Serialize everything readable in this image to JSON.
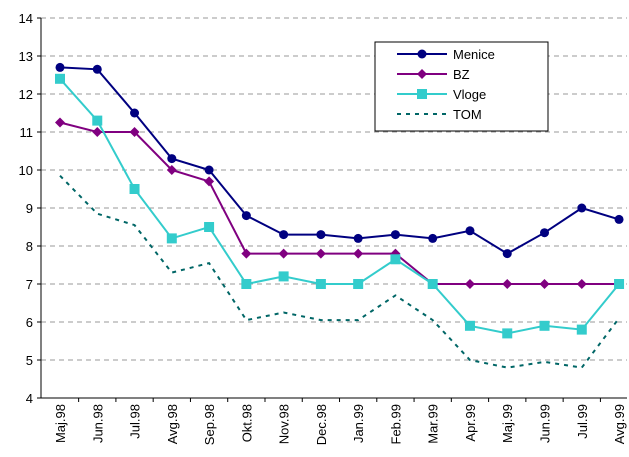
{
  "chart_data": {
    "type": "line",
    "categories": [
      "Maj.98",
      "Jun.98",
      "Jul.98",
      "Avg.98",
      "Sep.98",
      "Okt.98",
      "Nov.98",
      "Dec.98",
      "Jan.99",
      "Feb.99",
      "Mar.99",
      "Apr.99",
      "Maj.99",
      "Jun.99",
      "Jul.99",
      "Avg.99"
    ],
    "series": [
      {
        "name": "Menice",
        "color": "#000080",
        "marker": "circle",
        "values": [
          12.7,
          12.65,
          11.5,
          10.3,
          10.0,
          8.8,
          8.3,
          8.3,
          8.2,
          8.3,
          8.2,
          8.4,
          7.8,
          8.35,
          9.0,
          8.7
        ]
      },
      {
        "name": "BZ",
        "color": "#800080",
        "marker": "diamond",
        "values": [
          11.25,
          11.0,
          11.0,
          10.0,
          9.7,
          7.8,
          7.8,
          7.8,
          7.8,
          7.8,
          7.0,
          7.0,
          7.0,
          7.0,
          7.0,
          7.0
        ]
      },
      {
        "name": "Vloge",
        "color": "#33cccc",
        "marker": "square",
        "values": [
          12.4,
          11.3,
          9.5,
          8.2,
          8.5,
          7.0,
          7.2,
          7.0,
          7.0,
          7.65,
          7.0,
          5.9,
          5.7,
          5.9,
          5.8,
          7.0
        ]
      },
      {
        "name": "TOM",
        "color": "#006666",
        "marker": "none",
        "dashed": true,
        "values": [
          9.85,
          8.85,
          8.55,
          7.3,
          7.55,
          6.05,
          6.25,
          6.05,
          6.05,
          6.7,
          6.05,
          5.0,
          4.8,
          4.95,
          4.8,
          6.1
        ]
      }
    ],
    "ylim": [
      4,
      14
    ],
    "yticks": [
      4,
      5,
      6,
      7,
      8,
      9,
      10,
      11,
      12,
      13,
      14
    ],
    "grid": true,
    "legend": "top-right"
  }
}
